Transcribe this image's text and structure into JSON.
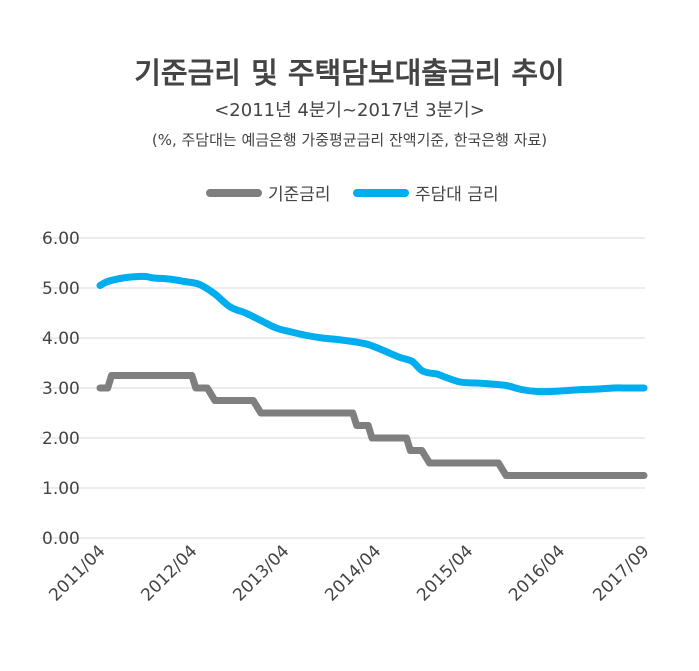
{
  "chart_data": {
    "type": "line",
    "title": "기준금리 및 주택담보대출금리 추이",
    "subtitle": "<2011년 4분기~2017년 3분기>",
    "note": "(%, 주담대는 예금은행 가중평균금리 잔액기준, 한국은행 자료)",
    "xlabel": "",
    "ylabel": "",
    "ylim": [
      0,
      6
    ],
    "yticks": [
      "0.00",
      "1.00",
      "2.00",
      "3.00",
      "4.00",
      "5.00",
      "6.00"
    ],
    "xticks": [
      "2011/04",
      "2012/04",
      "2013/04",
      "2014/04",
      "2015/04",
      "2016/04",
      "2017/09"
    ],
    "grid": true,
    "legend_position": "top",
    "series": [
      {
        "name": "기준금리",
        "color": "#7f7f7f",
        "points": [
          [
            0,
            3.0
          ],
          [
            1,
            3.0
          ],
          [
            1.5,
            3.25
          ],
          [
            12,
            3.25
          ],
          [
            12.5,
            3.0
          ],
          [
            14,
            3.0
          ],
          [
            15,
            2.75
          ],
          [
            20,
            2.75
          ],
          [
            21,
            2.5
          ],
          [
            33,
            2.5
          ],
          [
            33.5,
            2.25
          ],
          [
            35,
            2.25
          ],
          [
            35.5,
            2.0
          ],
          [
            40,
            2.0
          ],
          [
            40.5,
            1.75
          ],
          [
            42,
            1.75
          ],
          [
            43,
            1.5
          ],
          [
            52,
            1.5
          ],
          [
            53,
            1.25
          ],
          [
            71,
            1.25
          ]
        ]
      },
      {
        "name": "주담대 금리",
        "color": "#00aeef",
        "points": [
          [
            0,
            5.05
          ],
          [
            1,
            5.13
          ],
          [
            3,
            5.2
          ],
          [
            5,
            5.23
          ],
          [
            6,
            5.23
          ],
          [
            7,
            5.2
          ],
          [
            9,
            5.18
          ],
          [
            11,
            5.13
          ],
          [
            13,
            5.07
          ],
          [
            15,
            4.88
          ],
          [
            17,
            4.62
          ],
          [
            19,
            4.5
          ],
          [
            21,
            4.35
          ],
          [
            23,
            4.2
          ],
          [
            25,
            4.12
          ],
          [
            27,
            4.05
          ],
          [
            29,
            4.0
          ],
          [
            31,
            3.97
          ],
          [
            33,
            3.93
          ],
          [
            35,
            3.87
          ],
          [
            37,
            3.75
          ],
          [
            39,
            3.62
          ],
          [
            40.5,
            3.55
          ],
          [
            41,
            3.5
          ],
          [
            42,
            3.35
          ],
          [
            43,
            3.3
          ],
          [
            44,
            3.28
          ],
          [
            45,
            3.22
          ],
          [
            47,
            3.12
          ],
          [
            49,
            3.1
          ],
          [
            51,
            3.08
          ],
          [
            53,
            3.05
          ],
          [
            55,
            2.97
          ],
          [
            57,
            2.93
          ],
          [
            59,
            2.93
          ],
          [
            61,
            2.95
          ],
          [
            63,
            2.97
          ],
          [
            65,
            2.98
          ],
          [
            67,
            3.0
          ],
          [
            69,
            3.0
          ],
          [
            71,
            3.0
          ]
        ]
      }
    ]
  }
}
